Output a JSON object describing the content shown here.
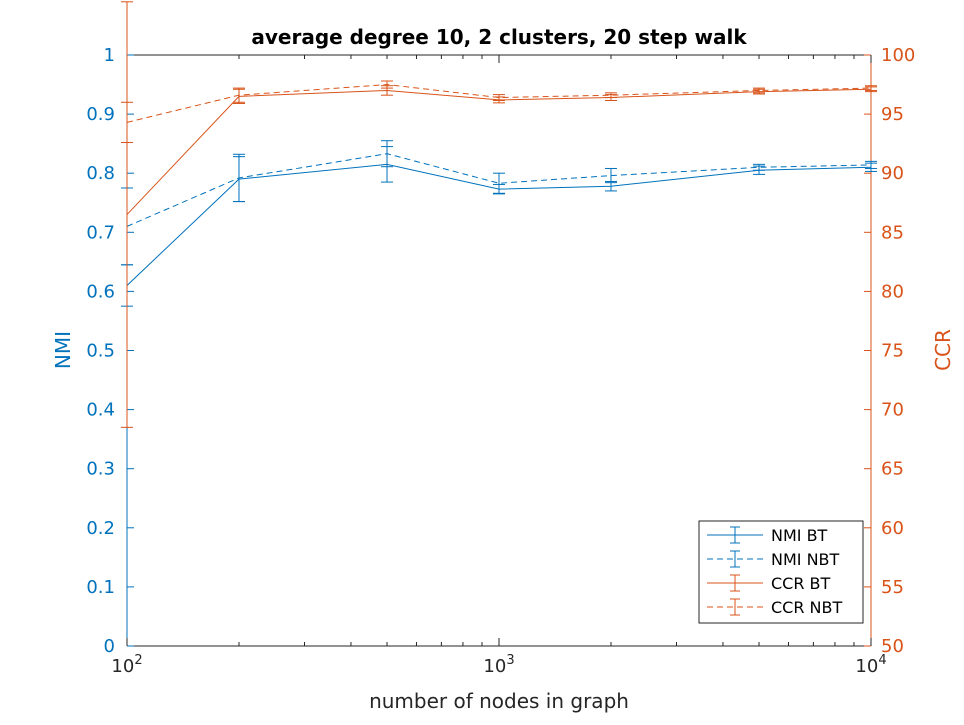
{
  "chart_data": {
    "type": "line",
    "title": "average degree 10, 2 clusters, 20 step walk",
    "xlabel": "number of nodes in graph",
    "ylabel_left": "NMI",
    "ylabel_right": "CCR",
    "x_scale": "log",
    "x": [
      100,
      200,
      500,
      1000,
      2000,
      5000,
      10000
    ],
    "x_ticks": [
      {
        "base": "10",
        "exp": "2",
        "value": 100
      },
      {
        "base": "10",
        "exp": "3",
        "value": 1000
      },
      {
        "base": "10",
        "exp": "4",
        "value": 10000
      }
    ],
    "xlim": [
      100,
      10000
    ],
    "ylim_left": [
      0,
      1
    ],
    "ylim_right": [
      50,
      100
    ],
    "yticks_left": [
      "0",
      "0.1",
      "0.2",
      "0.3",
      "0.4",
      "0.5",
      "0.6",
      "0.7",
      "0.8",
      "0.9",
      "1"
    ],
    "yticks_right": [
      "50",
      "55",
      "60",
      "65",
      "70",
      "75",
      "80",
      "85",
      "90",
      "95",
      "100"
    ],
    "legend_position": "bottom-right",
    "grid": false,
    "series": [
      {
        "name": "NMI BT",
        "axis": "left",
        "color": "#0072BD",
        "dash": "solid",
        "values": [
          0.61,
          0.79,
          0.815,
          0.773,
          0.778,
          0.805,
          0.81
        ],
        "errors": [
          0.035,
          0.038,
          0.03,
          0.008,
          0.008,
          0.007,
          0.007
        ]
      },
      {
        "name": "NMI NBT",
        "axis": "left",
        "color": "#0072BD",
        "dash": "dashed",
        "values": [
          0.71,
          0.792,
          0.833,
          0.783,
          0.796,
          0.81,
          0.814
        ],
        "errors": [
          0.065,
          0.04,
          0.022,
          0.017,
          0.012,
          0.005,
          0.006
        ]
      },
      {
        "name": "CCR BT",
        "axis": "right",
        "color": "#D95319",
        "dash": "solid",
        "values": [
          86.5,
          96.5,
          97.0,
          96.2,
          96.4,
          96.9,
          97.1
        ],
        "errors": [
          18.0,
          0.6,
          0.4,
          0.25,
          0.25,
          0.2,
          0.2
        ]
      },
      {
        "name": "CCR NBT",
        "axis": "right",
        "color": "#D95319",
        "dash": "dashed",
        "values": [
          94.3,
          96.6,
          97.5,
          96.4,
          96.6,
          97.0,
          97.2
        ],
        "errors": [
          1.7,
          0.6,
          0.3,
          0.25,
          0.2,
          0.2,
          0.2
        ]
      }
    ]
  }
}
